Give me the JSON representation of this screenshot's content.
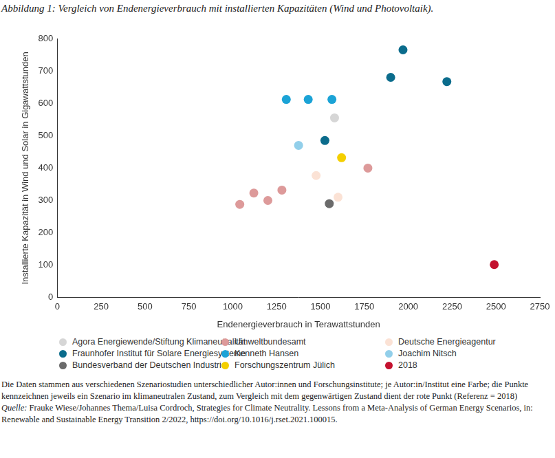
{
  "chart_data": {
    "type": "scatter",
    "title": "Abbildung 1: Vergleich von Endenergieverbrauch mit installierten Kapazitäten (Wind und Photovoltaik).",
    "x_label": "Endenergieverbrauch in Terawattstunden",
    "y_label": "Installierte Kapazität in Wind und Solar in Gigawattstunden",
    "xlim": [
      0,
      2750
    ],
    "xticks": [
      0,
      250,
      500,
      750,
      1000,
      1250,
      1500,
      1750,
      2000,
      2250,
      2500,
      2750
    ],
    "ylim": [
      0,
      800
    ],
    "yticks": [
      0,
      100,
      200,
      300,
      400,
      500,
      600,
      700,
      800
    ],
    "grid": false,
    "legend": "bottom",
    "marker": "circle",
    "series": [
      {
        "name": "Agora Energiewende/Stiftung Klimaneutralität",
        "color": "#d6d6d6",
        "x": [
          1580
        ],
        "values": [
          555
        ]
      },
      {
        "name": "Umweltbundesamt",
        "color": "#dd9a9a",
        "x": [
          1040,
          1120,
          1200,
          1280,
          1770
        ],
        "values": [
          288,
          323,
          300,
          332,
          400
        ]
      },
      {
        "name": "Deutsche Energieagentur",
        "color": "#fbe2d5",
        "x": [
          1475,
          1600
        ],
        "values": [
          377,
          310
        ]
      },
      {
        "name": "Fraunhofer Institut für Solare Energiesysteme",
        "color": "#0b6c8c",
        "x": [
          1970,
          1900,
          2220,
          1525
        ],
        "values": [
          765,
          680,
          667,
          485
        ]
      },
      {
        "name": "Kenneth Hansen",
        "color": "#1ba3d6",
        "x": [
          1305,
          1430,
          1565
        ],
        "values": [
          612,
          612,
          612
        ]
      },
      {
        "name": "Joachim Nitsch",
        "color": "#92cfea",
        "x": [
          1375
        ],
        "values": [
          470
        ]
      },
      {
        "name": "Bundesverband der Deutschen Industrie",
        "color": "#6b6b6b",
        "x": [
          1550
        ],
        "values": [
          290
        ]
      },
      {
        "name": "Forschungszentrum Jülich",
        "color": "#f4cf00",
        "x": [
          1620
        ],
        "values": [
          432
        ]
      },
      {
        "name": "2018",
        "color": "#c4122f",
        "x": [
          2490
        ],
        "values": [
          102
        ]
      }
    ]
  },
  "notes": {
    "text": "Die Daten stammen aus verschiedenen Szenariostudien unterschiedlicher Autor:innen und Forschungsinstitute; je Autor:in/Institut eine Farbe; die Punkte kennzeichnen jeweils ein Szenario im klimaneutralen Zustand, zum Vergleich mit dem gegenwärtigen Zustand dient der rote Punkt (Referenz = 2018)",
    "source_label": "Quelle:",
    "source": "Frauke Wiese/Johannes Thema/Luisa Cordroch, Strategies for Climate Neutrality. Lessons from a Meta-Analysis of German Energy Scenarios, in: Renewable and Sustainable Energy Transition 2/2022, https://doi.org/10.1016/j.rset.2021.100015."
  }
}
